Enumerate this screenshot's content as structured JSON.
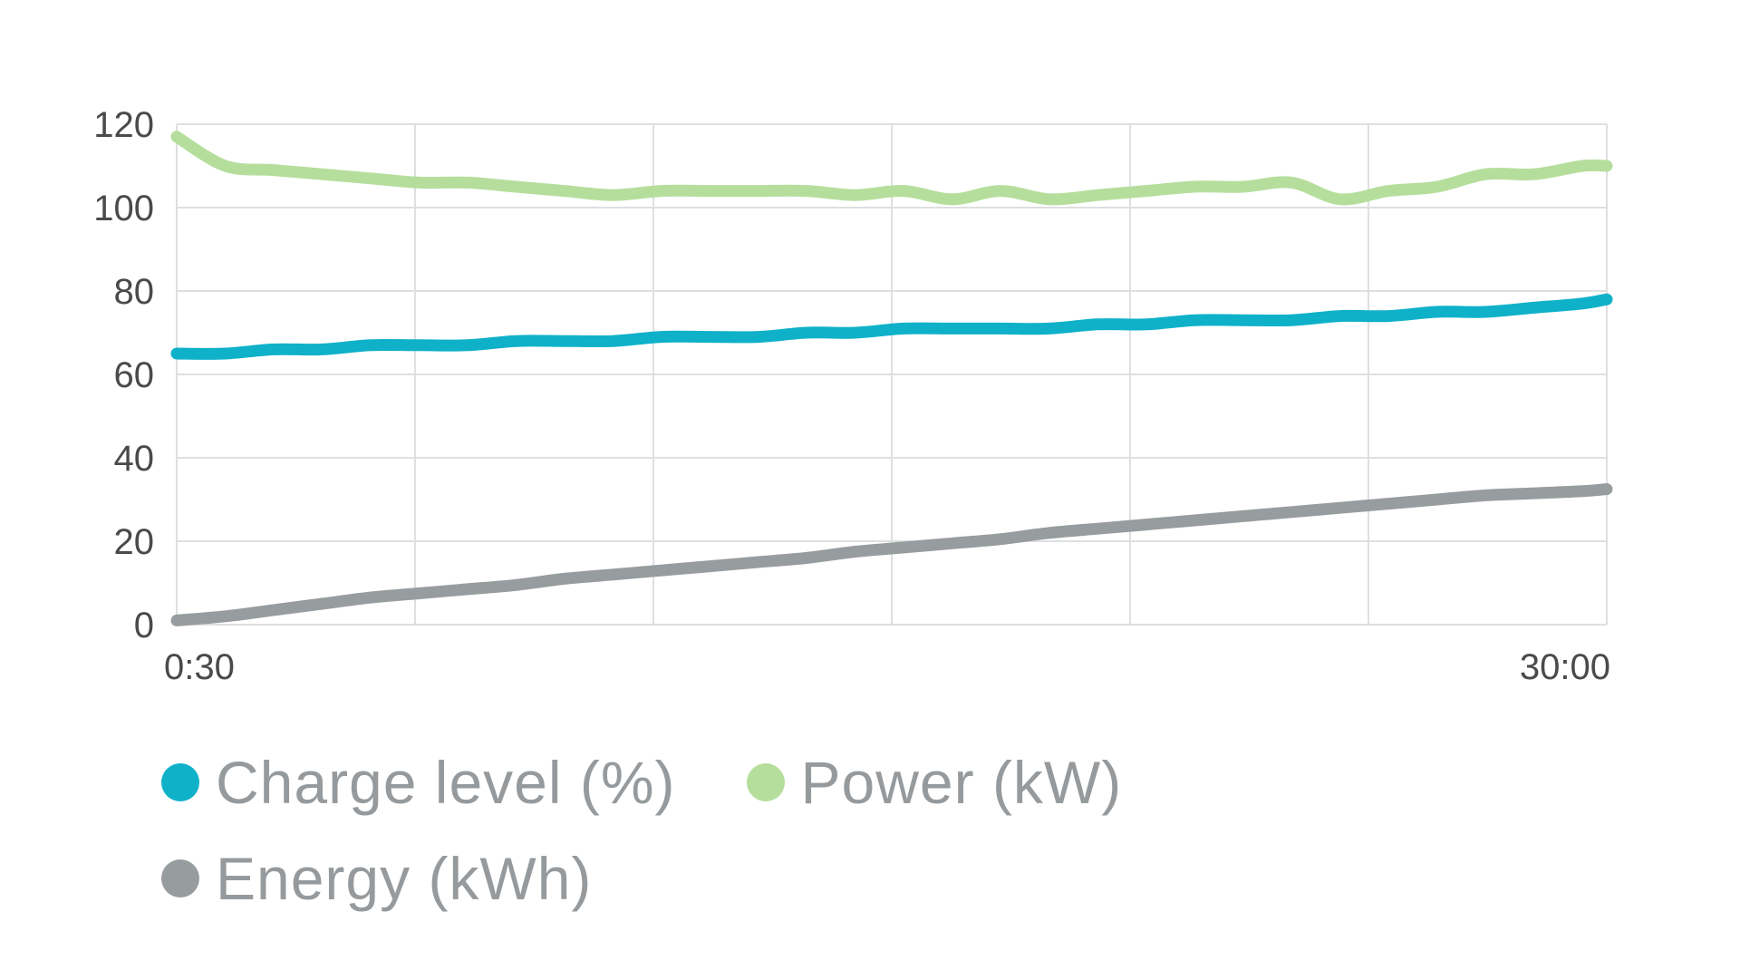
{
  "chart_data": {
    "type": "line",
    "title": "",
    "xlabel": "",
    "ylabel": "",
    "ylim": [
      0,
      120
    ],
    "y_ticks": [
      0,
      20,
      40,
      60,
      80,
      100,
      120
    ],
    "x_tick_labels": [
      "0:30",
      "30:00"
    ],
    "xlim": [
      0.5,
      30
    ],
    "grid": true,
    "legend_position": "bottom-left",
    "x": [
      0.5,
      1.5,
      2.5,
      3.5,
      4.5,
      5.5,
      6.5,
      7.5,
      8.5,
      9.5,
      10.5,
      11.5,
      12.5,
      13.5,
      14.5,
      15.5,
      16.5,
      17.5,
      18.5,
      19.5,
      20.5,
      21.5,
      22.5,
      23.5,
      24.5,
      25.5,
      26.5,
      27.5,
      28.5,
      29.5,
      30
    ],
    "series": [
      {
        "name": "Charge level (%)",
        "color": "#0fb1c9",
        "values": [
          65,
          65,
          66,
          66,
          67,
          67,
          67,
          68,
          68,
          68,
          69,
          69,
          69,
          70,
          70,
          71,
          71,
          71,
          71,
          72,
          72,
          73,
          73,
          73,
          74,
          74,
          75,
          75,
          76,
          77,
          78
        ]
      },
      {
        "name": "Power (kW)",
        "color": "#b5de9c",
        "values": [
          117,
          110,
          109,
          108,
          107,
          106,
          106,
          105,
          104,
          103,
          104,
          104,
          104,
          104,
          103,
          104,
          102,
          104,
          102,
          103,
          104,
          105,
          105,
          106,
          102,
          104,
          105,
          108,
          108,
          110,
          110
        ]
      },
      {
        "name": "Energy (kWh)",
        "color": "#979c9f",
        "values": [
          1,
          2,
          3.5,
          5,
          6.5,
          7.5,
          8.5,
          9.5,
          11,
          12,
          13,
          14,
          15,
          16,
          17.5,
          18.5,
          19.5,
          20.5,
          22,
          23,
          24,
          25,
          26,
          27,
          28,
          29,
          30,
          31,
          31.5,
          32,
          32.5
        ]
      }
    ]
  }
}
